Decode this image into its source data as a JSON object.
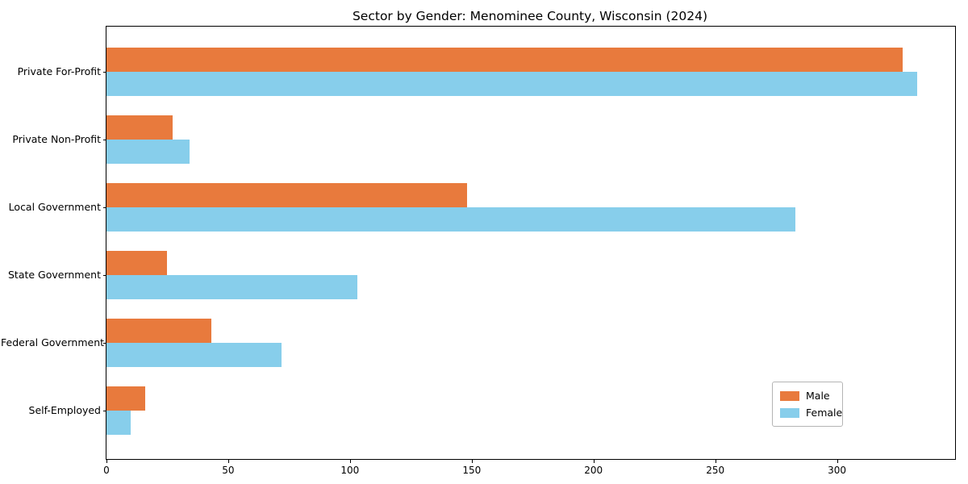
{
  "chart_data": {
    "type": "bar",
    "orientation": "horizontal",
    "title": "Sector by Gender: Menominee County, Wisconsin (2024)",
    "categories": [
      "Private For-Profit",
      "Private Non-Profit",
      "Local Government",
      "State Government",
      "Federal Government",
      "Self-Employed"
    ],
    "series": [
      {
        "name": "Male",
        "color": "#e87a3d",
        "values": [
          327,
          27,
          148,
          25,
          43,
          16
        ]
      },
      {
        "name": "Female",
        "color": "#87ceeb",
        "values": [
          333,
          34,
          283,
          103,
          72,
          10
        ]
      }
    ],
    "xlabel": "",
    "ylabel": "",
    "xlim": [
      0,
      348.5
    ],
    "xticks": [
      0,
      50,
      100,
      150,
      200,
      250,
      300
    ],
    "grid": false,
    "legend_position": "lower right",
    "plot_border_color": "#000000",
    "background_color": "#ffffff"
  }
}
